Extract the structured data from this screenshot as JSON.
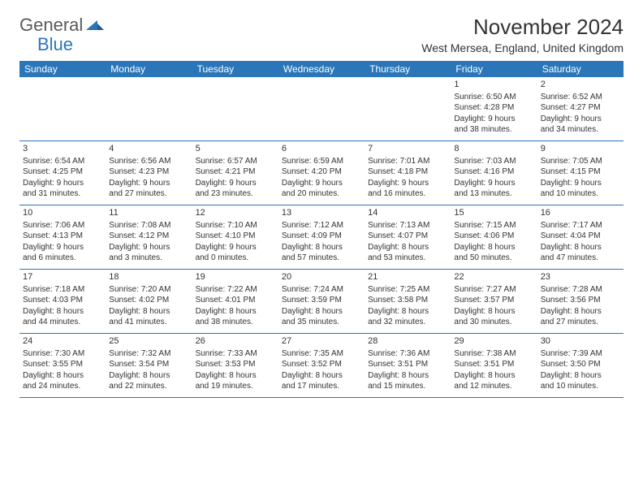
{
  "logo": {
    "text_gray": "General",
    "text_blue": "Blue",
    "arrow_color": "#2a76b8",
    "gray_color": "#5a5a5a"
  },
  "header": {
    "month_title": "November 2024",
    "location": "West Mersea, England, United Kingdom"
  },
  "styling": {
    "header_bg": "#2a76b8",
    "header_text": "#ffffff",
    "border_color": "#2a76b8",
    "body_text": "#333333",
    "background": "#ffffff",
    "month_title_fontsize": 26,
    "location_fontsize": 14,
    "weekday_fontsize": 12,
    "daynum_fontsize": 11,
    "cell_fontsize": 10
  },
  "weekdays": [
    "Sunday",
    "Monday",
    "Tuesday",
    "Wednesday",
    "Thursday",
    "Friday",
    "Saturday"
  ],
  "weeks": [
    [
      {
        "num": "",
        "lines": []
      },
      {
        "num": "",
        "lines": []
      },
      {
        "num": "",
        "lines": []
      },
      {
        "num": "",
        "lines": []
      },
      {
        "num": "",
        "lines": []
      },
      {
        "num": "1",
        "lines": [
          "Sunrise: 6:50 AM",
          "Sunset: 4:28 PM",
          "Daylight: 9 hours",
          "and 38 minutes."
        ]
      },
      {
        "num": "2",
        "lines": [
          "Sunrise: 6:52 AM",
          "Sunset: 4:27 PM",
          "Daylight: 9 hours",
          "and 34 minutes."
        ]
      }
    ],
    [
      {
        "num": "3",
        "lines": [
          "Sunrise: 6:54 AM",
          "Sunset: 4:25 PM",
          "Daylight: 9 hours",
          "and 31 minutes."
        ]
      },
      {
        "num": "4",
        "lines": [
          "Sunrise: 6:56 AM",
          "Sunset: 4:23 PM",
          "Daylight: 9 hours",
          "and 27 minutes."
        ]
      },
      {
        "num": "5",
        "lines": [
          "Sunrise: 6:57 AM",
          "Sunset: 4:21 PM",
          "Daylight: 9 hours",
          "and 23 minutes."
        ]
      },
      {
        "num": "6",
        "lines": [
          "Sunrise: 6:59 AM",
          "Sunset: 4:20 PM",
          "Daylight: 9 hours",
          "and 20 minutes."
        ]
      },
      {
        "num": "7",
        "lines": [
          "Sunrise: 7:01 AM",
          "Sunset: 4:18 PM",
          "Daylight: 9 hours",
          "and 16 minutes."
        ]
      },
      {
        "num": "8",
        "lines": [
          "Sunrise: 7:03 AM",
          "Sunset: 4:16 PM",
          "Daylight: 9 hours",
          "and 13 minutes."
        ]
      },
      {
        "num": "9",
        "lines": [
          "Sunrise: 7:05 AM",
          "Sunset: 4:15 PM",
          "Daylight: 9 hours",
          "and 10 minutes."
        ]
      }
    ],
    [
      {
        "num": "10",
        "lines": [
          "Sunrise: 7:06 AM",
          "Sunset: 4:13 PM",
          "Daylight: 9 hours",
          "and 6 minutes."
        ]
      },
      {
        "num": "11",
        "lines": [
          "Sunrise: 7:08 AM",
          "Sunset: 4:12 PM",
          "Daylight: 9 hours",
          "and 3 minutes."
        ]
      },
      {
        "num": "12",
        "lines": [
          "Sunrise: 7:10 AM",
          "Sunset: 4:10 PM",
          "Daylight: 9 hours",
          "and 0 minutes."
        ]
      },
      {
        "num": "13",
        "lines": [
          "Sunrise: 7:12 AM",
          "Sunset: 4:09 PM",
          "Daylight: 8 hours",
          "and 57 minutes."
        ]
      },
      {
        "num": "14",
        "lines": [
          "Sunrise: 7:13 AM",
          "Sunset: 4:07 PM",
          "Daylight: 8 hours",
          "and 53 minutes."
        ]
      },
      {
        "num": "15",
        "lines": [
          "Sunrise: 7:15 AM",
          "Sunset: 4:06 PM",
          "Daylight: 8 hours",
          "and 50 minutes."
        ]
      },
      {
        "num": "16",
        "lines": [
          "Sunrise: 7:17 AM",
          "Sunset: 4:04 PM",
          "Daylight: 8 hours",
          "and 47 minutes."
        ]
      }
    ],
    [
      {
        "num": "17",
        "lines": [
          "Sunrise: 7:18 AM",
          "Sunset: 4:03 PM",
          "Daylight: 8 hours",
          "and 44 minutes."
        ]
      },
      {
        "num": "18",
        "lines": [
          "Sunrise: 7:20 AM",
          "Sunset: 4:02 PM",
          "Daylight: 8 hours",
          "and 41 minutes."
        ]
      },
      {
        "num": "19",
        "lines": [
          "Sunrise: 7:22 AM",
          "Sunset: 4:01 PM",
          "Daylight: 8 hours",
          "and 38 minutes."
        ]
      },
      {
        "num": "20",
        "lines": [
          "Sunrise: 7:24 AM",
          "Sunset: 3:59 PM",
          "Daylight: 8 hours",
          "and 35 minutes."
        ]
      },
      {
        "num": "21",
        "lines": [
          "Sunrise: 7:25 AM",
          "Sunset: 3:58 PM",
          "Daylight: 8 hours",
          "and 32 minutes."
        ]
      },
      {
        "num": "22",
        "lines": [
          "Sunrise: 7:27 AM",
          "Sunset: 3:57 PM",
          "Daylight: 8 hours",
          "and 30 minutes."
        ]
      },
      {
        "num": "23",
        "lines": [
          "Sunrise: 7:28 AM",
          "Sunset: 3:56 PM",
          "Daylight: 8 hours",
          "and 27 minutes."
        ]
      }
    ],
    [
      {
        "num": "24",
        "lines": [
          "Sunrise: 7:30 AM",
          "Sunset: 3:55 PM",
          "Daylight: 8 hours",
          "and 24 minutes."
        ]
      },
      {
        "num": "25",
        "lines": [
          "Sunrise: 7:32 AM",
          "Sunset: 3:54 PM",
          "Daylight: 8 hours",
          "and 22 minutes."
        ]
      },
      {
        "num": "26",
        "lines": [
          "Sunrise: 7:33 AM",
          "Sunset: 3:53 PM",
          "Daylight: 8 hours",
          "and 19 minutes."
        ]
      },
      {
        "num": "27",
        "lines": [
          "Sunrise: 7:35 AM",
          "Sunset: 3:52 PM",
          "Daylight: 8 hours",
          "and 17 minutes."
        ]
      },
      {
        "num": "28",
        "lines": [
          "Sunrise: 7:36 AM",
          "Sunset: 3:51 PM",
          "Daylight: 8 hours",
          "and 15 minutes."
        ]
      },
      {
        "num": "29",
        "lines": [
          "Sunrise: 7:38 AM",
          "Sunset: 3:51 PM",
          "Daylight: 8 hours",
          "and 12 minutes."
        ]
      },
      {
        "num": "30",
        "lines": [
          "Sunrise: 7:39 AM",
          "Sunset: 3:50 PM",
          "Daylight: 8 hours",
          "and 10 minutes."
        ]
      }
    ]
  ]
}
